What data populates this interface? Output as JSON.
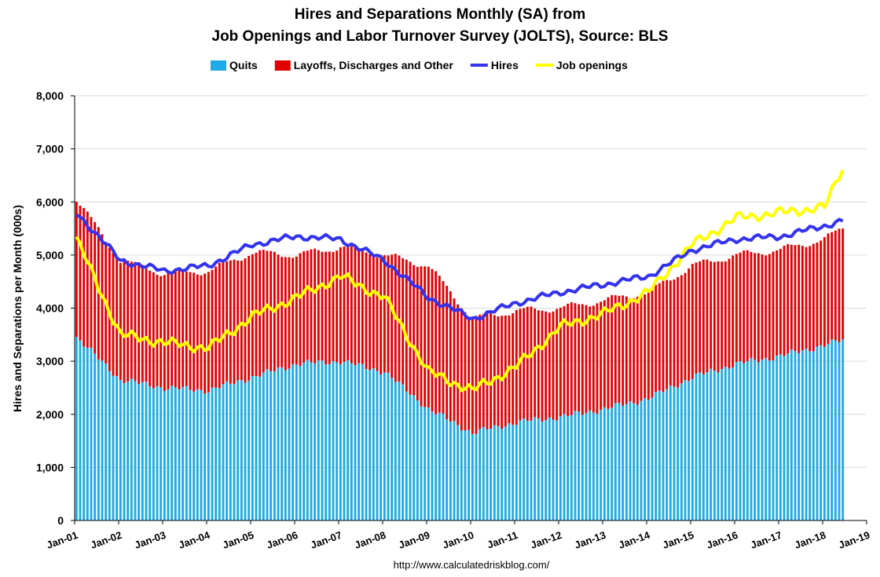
{
  "chart_data": {
    "type": "bar",
    "title": [
      "Hires and Separations Monthly (SA) from",
      "Job Openings and Labor Turnover Survey (JOLTS), Source: BLS"
    ],
    "ylabel": "Hires and Separations per Month (000s)",
    "ylim": [
      0,
      8000
    ],
    "yticks": [
      0,
      1000,
      2000,
      3000,
      4000,
      5000,
      6000,
      7000,
      8000
    ],
    "ytick_labels": [
      "0",
      "1,000",
      "2,000",
      "3,000",
      "4,000",
      "5,000",
      "6,000",
      "7,000",
      "8,000"
    ],
    "xlim": [
      "Jan-01",
      "Jan-19"
    ],
    "xtick_labels": [
      "Jan-01",
      "Jan-02",
      "Jan-03",
      "Jan-04",
      "Jan-05",
      "Jan-06",
      "Jan-07",
      "Jan-08",
      "Jan-09",
      "Jan-10",
      "Jan-11",
      "Jan-12",
      "Jan-13",
      "Jan-14",
      "Jan-15",
      "Jan-16",
      "Jan-17",
      "Jan-18",
      "Jan-19"
    ],
    "grid": "horizontal",
    "legend_position": "top",
    "source": "http://www.calculatedriskblog.com/",
    "colors": {
      "quits": "#1eaae6",
      "layoffs": "#e00000",
      "hires": "#3333ee",
      "openings": "#ffff00"
    },
    "stacked": true,
    "series": [
      {
        "name": "Quits",
        "kind": "bar",
        "x": [
          "Jan-01",
          "Jan-02",
          "Jan-03",
          "Jan-04",
          "Jan-05",
          "Jan-06",
          "Jan-07",
          "Jan-08",
          "Jan-09",
          "Jan-10",
          "Jan-11",
          "Jan-12",
          "Jan-13",
          "Jan-14",
          "Jan-15",
          "Jan-16",
          "Jan-17",
          "Jan-18",
          "Jun-18"
        ],
        "values": [
          3450,
          2650,
          2500,
          2450,
          2700,
          2950,
          3000,
          2800,
          2100,
          1650,
          1850,
          1950,
          2100,
          2300,
          2700,
          2950,
          3100,
          3300,
          3400
        ]
      },
      {
        "name": "Layoffs, Discharges and Other",
        "kind": "bar",
        "x": [
          "Jan-01",
          "Jan-02",
          "Jan-03",
          "Jan-04",
          "Jan-05",
          "Jan-06",
          "Jan-07",
          "Jan-08",
          "Jan-09",
          "Jan-10",
          "Jan-11",
          "Jan-12",
          "Jan-13",
          "Jan-14",
          "Jan-15",
          "Jan-16",
          "Jan-17",
          "Jan-18",
          "Jun-18"
        ],
        "values": [
          2600,
          2250,
          2150,
          2250,
          2350,
          2050,
          2150,
          2200,
          2700,
          2150,
          2100,
          2050,
          2050,
          2000,
          2100,
          2050,
          2000,
          2000,
          2100
        ]
      },
      {
        "name": "Hires",
        "kind": "line",
        "x": [
          "Jan-01",
          "Jan-02",
          "Jan-03",
          "Jan-04",
          "Jan-05",
          "Jan-06",
          "Jan-07",
          "Jan-08",
          "Jan-09",
          "Jan-10",
          "Jan-11",
          "Jan-12",
          "Jan-13",
          "Jan-14",
          "Jan-15",
          "Jan-16",
          "Jan-17",
          "Jan-18",
          "Jun-18"
        ],
        "values": [
          5800,
          4900,
          4700,
          4800,
          5200,
          5350,
          5300,
          4900,
          4200,
          3800,
          4100,
          4300,
          4450,
          4600,
          5100,
          5300,
          5350,
          5550,
          5650
        ]
      },
      {
        "name": "Job openings",
        "kind": "line",
        "x": [
          "Jan-01",
          "Jan-02",
          "Jan-03",
          "Jan-04",
          "Jan-05",
          "Jan-06",
          "Jan-07",
          "Jan-08",
          "Jan-09",
          "Jan-10",
          "Jan-11",
          "Jan-12",
          "Jan-13",
          "Jan-14",
          "Jan-15",
          "Jan-16",
          "Jan-17",
          "Jan-18",
          "Jun-18"
        ],
        "values": [
          5300,
          3500,
          3350,
          3250,
          3850,
          4200,
          4600,
          4200,
          2800,
          2450,
          2900,
          3650,
          3900,
          4300,
          5200,
          5700,
          5800,
          5900,
          6650
        ]
      }
    ]
  }
}
